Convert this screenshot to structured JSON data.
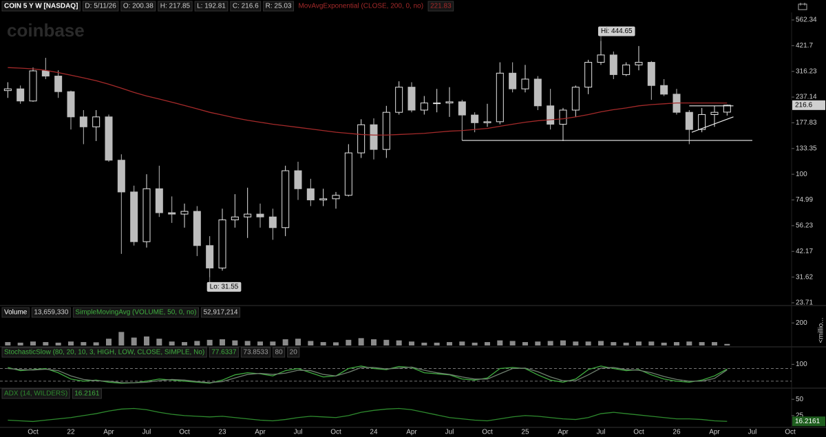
{
  "watermark": "coinbase",
  "chart_data": [
    {
      "type": "candlestick",
      "title": "COIN 5 Y W [NASDAQ]",
      "legend": [
        "D: 5/11/26",
        "O: 200.38",
        "H: 217.85",
        "L: 192.81",
        "C: 216.6",
        "R: 25.03"
      ],
      "categories": [
        null,
        null,
        "Oct",
        null,
        null,
        "22",
        null,
        null,
        "Apr",
        null,
        null,
        "Jul",
        null,
        null,
        "Oct",
        null,
        null,
        "23",
        null,
        null,
        "Apr",
        null,
        null,
        "Jul",
        null,
        null,
        "Oct",
        null,
        null,
        "24",
        null,
        null,
        "Apr",
        null,
        null,
        "Jul",
        null,
        null,
        "Oct",
        null,
        null,
        "25",
        null,
        null,
        "Apr",
        null,
        null,
        "Jul",
        null,
        null,
        "Oct",
        null,
        null,
        "26",
        null,
        null,
        "Apr",
        null,
        null,
        "Jul",
        null,
        null,
        "Oct"
      ],
      "open": [
        255,
        260,
        227,
        318,
        300,
        252,
        190,
        170,
        190,
        117,
        82,
        47,
        85,
        65,
        64,
        66,
        45,
        35,
        60,
        62,
        64,
        62,
        55,
        104,
        85,
        75,
        76,
        79,
        127,
        174,
        132,
        200,
        265,
        205,
        222,
        222,
        225,
        194,
        178,
        180,
        310,
        260,
        290,
        215,
        175,
        205,
        265,
        350,
        380,
        305,
        340,
        350,
        270,
        245,
        200,
        165,
        195,
        200.38,
        null,
        null,
        null,
        null,
        null
      ],
      "high": [
        280,
        270,
        330,
        368,
        320,
        255,
        205,
        205,
        195,
        125,
        88,
        100,
        110,
        78,
        72,
        70,
        50,
        68,
        80,
        86,
        72,
        68,
        110,
        115,
        95,
        85,
        82,
        140,
        185,
        187,
        215,
        283,
        280,
        240,
        260,
        265,
        230,
        200,
        220,
        350,
        350,
        340,
        300,
        260,
        210,
        270,
        360,
        444.65,
        395,
        350,
        420,
        355,
        290,
        260,
        205,
        210,
        215,
        217.85,
        null,
        null,
        null,
        null,
        null
      ],
      "low": [
        235,
        220,
        225,
        290,
        235,
        165,
        140,
        145,
        115,
        41,
        45,
        44,
        62,
        58,
        55,
        40,
        31.55,
        34,
        55,
        49,
        55,
        48,
        50,
        75,
        70,
        70,
        68,
        78,
        120,
        118,
        120,
        195,
        200,
        195,
        200,
        190,
        146,
        160,
        170,
        175,
        250,
        250,
        205,
        165,
        145,
        190,
        245,
        340,
        290,
        300,
        320,
        230,
        240,
        195,
        140,
        160,
        170,
        192.81,
        null,
        null,
        null,
        null,
        null
      ],
      "close": [
        260,
        227,
        318,
        300,
        252,
        190,
        170,
        190,
        117,
        82,
        47,
        85,
        65,
        64,
        66,
        45,
        35,
        60,
        62,
        64,
        62,
        55,
        104,
        85,
        75,
        76,
        79,
        127,
        174,
        132,
        200,
        265,
        205,
        222,
        222,
        225,
        194,
        178,
        180,
        310,
        260,
        290,
        215,
        175,
        205,
        265,
        350,
        380,
        305,
        340,
        350,
        270,
        245,
        200,
        165,
        195,
        200,
        216.6,
        null,
        null,
        null,
        null,
        null
      ],
      "up_color": "#e6e6e6",
      "down_color": "#bdbdbd",
      "overlays": [
        {
          "name": "MovAvgExponential (CLOSE, 200, 0, no)",
          "color": "#a52a2a",
          "values": [
            330,
            328,
            325,
            320,
            312,
            303,
            294,
            285,
            274,
            262,
            250,
            240,
            232,
            224,
            216,
            208,
            200,
            194,
            188,
            183,
            179,
            175,
            172,
            169,
            166,
            163,
            160,
            158,
            156,
            155,
            155,
            156,
            157,
            158,
            160,
            162,
            163,
            165,
            167,
            171,
            175,
            179,
            182,
            184,
            186,
            190,
            195,
            201,
            206,
            210,
            215,
            218,
            220,
            222,
            222,
            222,
            222,
            221.83,
            null,
            null,
            null,
            null,
            null
          ]
        }
      ],
      "hi": {
        "label": "Hi: 444.65",
        "value": 444.65
      },
      "lo": {
        "label": "Lo: 31.55",
        "value": 31.55
      },
      "trendlines": [
        {
          "values": [
            146,
            146
          ]
        },
        {
          "values": [
            215,
            215
          ]
        },
        {
          "values": [
            160,
            190
          ]
        }
      ],
      "log_scale": true,
      "ylim": [
        23.17,
        612
      ],
      "yticks": [
        562.34,
        421.7,
        316.23,
        237.14,
        177.83,
        133.35,
        100,
        74.99,
        56.23,
        42.17,
        31.62,
        23.71
      ]
    },
    {
      "type": "bar",
      "title": "Volume",
      "legend": [
        "13,659,330",
        "SimpleMovingAvg (VOLUME, 50, 0, no)",
        "52,917,214"
      ],
      "y_label": "<millio...",
      "color": "#8a8a8a",
      "values": [
        30,
        25,
        35,
        30,
        25,
        35,
        30,
        28,
        60,
        120,
        70,
        80,
        60,
        35,
        30,
        40,
        50,
        55,
        45,
        40,
        35,
        35,
        55,
        60,
        40,
        30,
        28,
        50,
        65,
        55,
        50,
        45,
        35,
        25,
        25,
        30,
        35,
        25,
        30,
        45,
        40,
        30,
        35,
        40,
        45,
        35,
        35,
        40,
        30,
        25,
        35,
        35,
        25,
        30,
        35,
        30,
        30,
        13.66,
        null,
        null,
        null,
        null,
        null
      ],
      "ylim": [
        0,
        330
      ],
      "yticks": [
        200
      ]
    },
    {
      "type": "line",
      "title": "StochasticSlow (80, 20, 10, 3, HIGH, LOW, CLOSE, SIMPLE, No)",
      "levels": [
        80,
        20
      ],
      "series": [
        {
          "color": "#3fae3f",
          "values": [
            85,
            70,
            75,
            80,
            60,
            30,
            20,
            25,
            15,
            10,
            12,
            20,
            30,
            25,
            20,
            15,
            10,
            25,
            50,
            60,
            55,
            45,
            70,
            80,
            60,
            40,
            45,
            80,
            92,
            80,
            75,
            90,
            85,
            60,
            55,
            50,
            30,
            25,
            35,
            80,
            85,
            80,
            50,
            25,
            15,
            30,
            75,
            92,
            80,
            70,
            75,
            50,
            30,
            20,
            15,
            25,
            45,
            77.6337,
            null,
            null,
            null,
            null,
            null
          ]
        },
        {
          "color": "#6f7f6f",
          "values": [
            80,
            75,
            73,
            77,
            70,
            45,
            28,
            22,
            20,
            13,
            12,
            15,
            22,
            28,
            25,
            18,
            13,
            18,
            35,
            52,
            57,
            52,
            58,
            72,
            70,
            52,
            45,
            62,
            85,
            85,
            78,
            82,
            87,
            72,
            60,
            52,
            40,
            30,
            30,
            55,
            80,
            82,
            65,
            40,
            22,
            22,
            50,
            82,
            85,
            75,
            72,
            60,
            42,
            28,
            20,
            20,
            33,
            73.8533,
            null,
            null,
            null,
            null,
            null
          ]
        }
      ],
      "ylim": [
        -10,
        180
      ],
      "yticks": [
        100
      ]
    },
    {
      "type": "line",
      "title": "ADX (14, WILDERS)",
      "series": [
        {
          "color": "#2e8b2e",
          "values": [
            18,
            17,
            16,
            18,
            20,
            22,
            25,
            28,
            32,
            35,
            36,
            34,
            30,
            27,
            25,
            24,
            23,
            24,
            22,
            20,
            18,
            17,
            19,
            22,
            24,
            23,
            22,
            25,
            30,
            33,
            35,
            36,
            34,
            30,
            26,
            22,
            20,
            18,
            17,
            20,
            23,
            25,
            24,
            22,
            20,
            19,
            22,
            28,
            30,
            28,
            26,
            24,
            22,
            20,
            20,
            19,
            17,
            16.2161,
            null,
            null,
            null,
            null,
            null
          ]
        }
      ],
      "ylim": [
        8,
        65
      ],
      "yticks": [
        50,
        25
      ]
    }
  ]
}
